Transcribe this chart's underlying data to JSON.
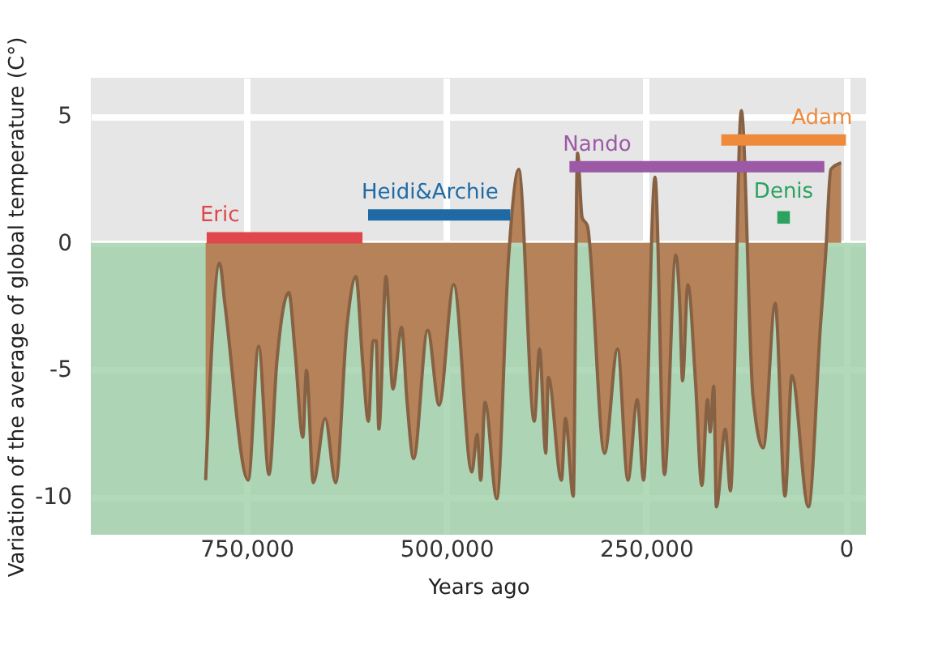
{
  "chart_data": {
    "type": "area",
    "xlabel": "Years ago",
    "ylabel": "Variation of the average of global temperature (C°)",
    "xlim": [
      945000,
      -25000
    ],
    "xticks": [
      {
        "value": 750000,
        "label": "750,000"
      },
      {
        "value": 500000,
        "label": "500,000"
      },
      {
        "value": 250000,
        "label": "250,000"
      },
      0
    ],
    "ylim": [
      -11.5,
      6.5
    ],
    "yticks": [
      -10,
      -5,
      0,
      5
    ],
    "grid": true,
    "bands": [
      {
        "axis": "y",
        "from": -11.5,
        "to": 0,
        "color": "#9fcfa8"
      }
    ],
    "series": [
      {
        "color": "#b5825a",
        "x": [
          801300,
          783800,
          777300,
          748000,
          735000,
          722000,
          712200,
          697200,
          689400,
          679600,
          675100,
          666600,
          651700,
          638600,
          624300,
          613200,
          604800,
          597600,
          591800,
          587900,
          584500,
          575500,
          567000,
          556000,
          549400,
          541000,
          523400,
          509100,
          490800,
          468100,
          461500,
          457000,
          451700,
          436900,
          422400,
          409500,
          390000,
          383400,
          375600,
          372400,
          356000,
          351000,
          341200,
          335900,
          330100,
          323600,
          302100,
          285800,
          272800,
          261100,
          253300,
          238900,
          227100,
          212900,
          207600,
          204500,
          197800,
          188100,
          180300,
          173200,
          169900,
          165400,
          162100,
          151000,
          144500,
          130900,
          116500,
          103500,
          88500,
          76200,
          67700,
          46900,
          31800,
          25400,
          18900,
          5900
        ],
        "values": [
          -9.35,
          -0.8,
          -2.39,
          -9.35,
          -4.07,
          -9.13,
          -4.7,
          -1.96,
          -4.28,
          -7.66,
          -5.02,
          -9.45,
          -6.92,
          -9.45,
          -3.23,
          -1.33,
          -4.7,
          -7.03,
          -3.86,
          -3.86,
          -7.34,
          -1.33,
          -5.76,
          -3.33,
          -6.18,
          -8.5,
          -3.44,
          -6.39,
          -1.65,
          -9.03,
          -7.55,
          -9.35,
          -6.28,
          -10.08,
          -0.7,
          2.89,
          -7.03,
          -4.18,
          -8.29,
          -5.3,
          -9.35,
          -6.92,
          -9.98,
          3.53,
          0.99,
          0.68,
          -8.29,
          -4.18,
          -9.35,
          -6.18,
          -9.35,
          2.58,
          -9.13,
          -0.49,
          -2.7,
          -5.44,
          -1.65,
          -5.55,
          -9.56,
          -6.18,
          -7.45,
          -5.65,
          -10.4,
          -7.34,
          -9.77,
          5.21,
          -5.97,
          -8.08,
          -2.39,
          -9.98,
          -5.23,
          -10.4,
          -3.23,
          -0.49,
          2.89,
          3.15
        ]
      },
      {
        "type": "line",
        "name": "Eric",
        "color": "#e0474c",
        "x": [
          800000,
          605000
        ],
        "values": [
          0.2,
          0.2
        ]
      },
      {
        "type": "line",
        "name": "Heidi&Archie",
        "color": "#1f6aa5",
        "x": [
          598000,
          420000
        ],
        "values": [
          1.1,
          1.1
        ]
      },
      {
        "type": "line",
        "name": "Nando",
        "color": "#9b59a6",
        "x": [
          346000,
          27000
        ],
        "values": [
          3.0,
          3.0
        ]
      },
      {
        "type": "line",
        "name": "Adam",
        "color": "#ee8a3c",
        "x": [
          156000,
          0
        ],
        "values": [
          4.05,
          4.05
        ]
      },
      {
        "type": "scatter",
        "name": "Denis",
        "color": "#2ca25f",
        "marker": "square",
        "x": [
          78000
        ],
        "values": [
          1.0
        ]
      }
    ]
  }
}
